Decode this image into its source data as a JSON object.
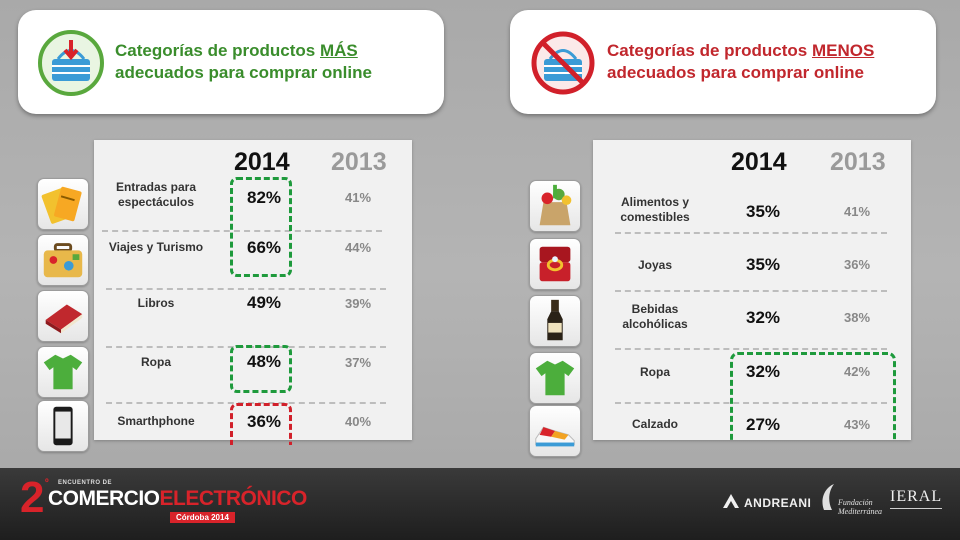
{
  "header_best": {
    "line1_prefix": "Categorías de productos ",
    "line1_emph": "MÁS",
    "line2": "adecuados para comprar online",
    "accent": "#3a8d2c",
    "icon": "shopping-basket-approved-icon"
  },
  "header_worst": {
    "line1_prefix": "Categorías de productos ",
    "line1_emph": "MENOS",
    "line2": "adecuados para comprar online",
    "accent": "#c1272d",
    "icon": "shopping-basket-prohibited-icon"
  },
  "table_best": {
    "year_current": "2014",
    "year_previous": "2013",
    "rows": [
      {
        "category": "Entradas para espectáculos",
        "v2014": "82%",
        "v2013": "41%",
        "icon": "tickets-icon"
      },
      {
        "category": "Viajes y Turismo",
        "v2014": "66%",
        "v2013": "44%",
        "icon": "suitcase-icon"
      },
      {
        "category": "Libros",
        "v2014": "49%",
        "v2013": "39%",
        "icon": "book-icon"
      },
      {
        "category": "Ropa",
        "v2014": "48%",
        "v2013": "37%",
        "icon": "tshirt-icon"
      },
      {
        "category": "Smarthphone",
        "v2014": "36%",
        "v2013": "40%",
        "icon": "smartphone-icon"
      }
    ]
  },
  "table_worst": {
    "year_current": "2014",
    "year_previous": "2013",
    "rows": [
      {
        "category": "Alimentos y comestibles",
        "v2014": "35%",
        "v2013": "41%",
        "icon": "groceries-icon"
      },
      {
        "category": "Joyas",
        "v2014": "35%",
        "v2013": "36%",
        "icon": "ring-box-icon"
      },
      {
        "category": "Bebidas alcohólicas",
        "v2014": "32%",
        "v2013": "38%",
        "icon": "bottle-icon"
      },
      {
        "category": "Ropa",
        "v2014": "32%",
        "v2013": "42%",
        "icon": "tshirt-icon"
      },
      {
        "category": "Calzado",
        "v2014": "27%",
        "v2013": "43%",
        "icon": "sneaker-icon"
      }
    ]
  },
  "highlight_colors": {
    "green": "#1e9a3c",
    "red": "#d1202a"
  },
  "footer": {
    "event_number": "2",
    "event_ordinal": "º",
    "event_small": "ENCUENTRO DE",
    "event_word1": "COMERCIO",
    "event_word2": "ELECTRÓNICO",
    "event_sub": "Córdoba 2014",
    "sponsors": [
      "ANDREANI",
      "Fundación Mediterránea",
      "IERAL"
    ]
  }
}
